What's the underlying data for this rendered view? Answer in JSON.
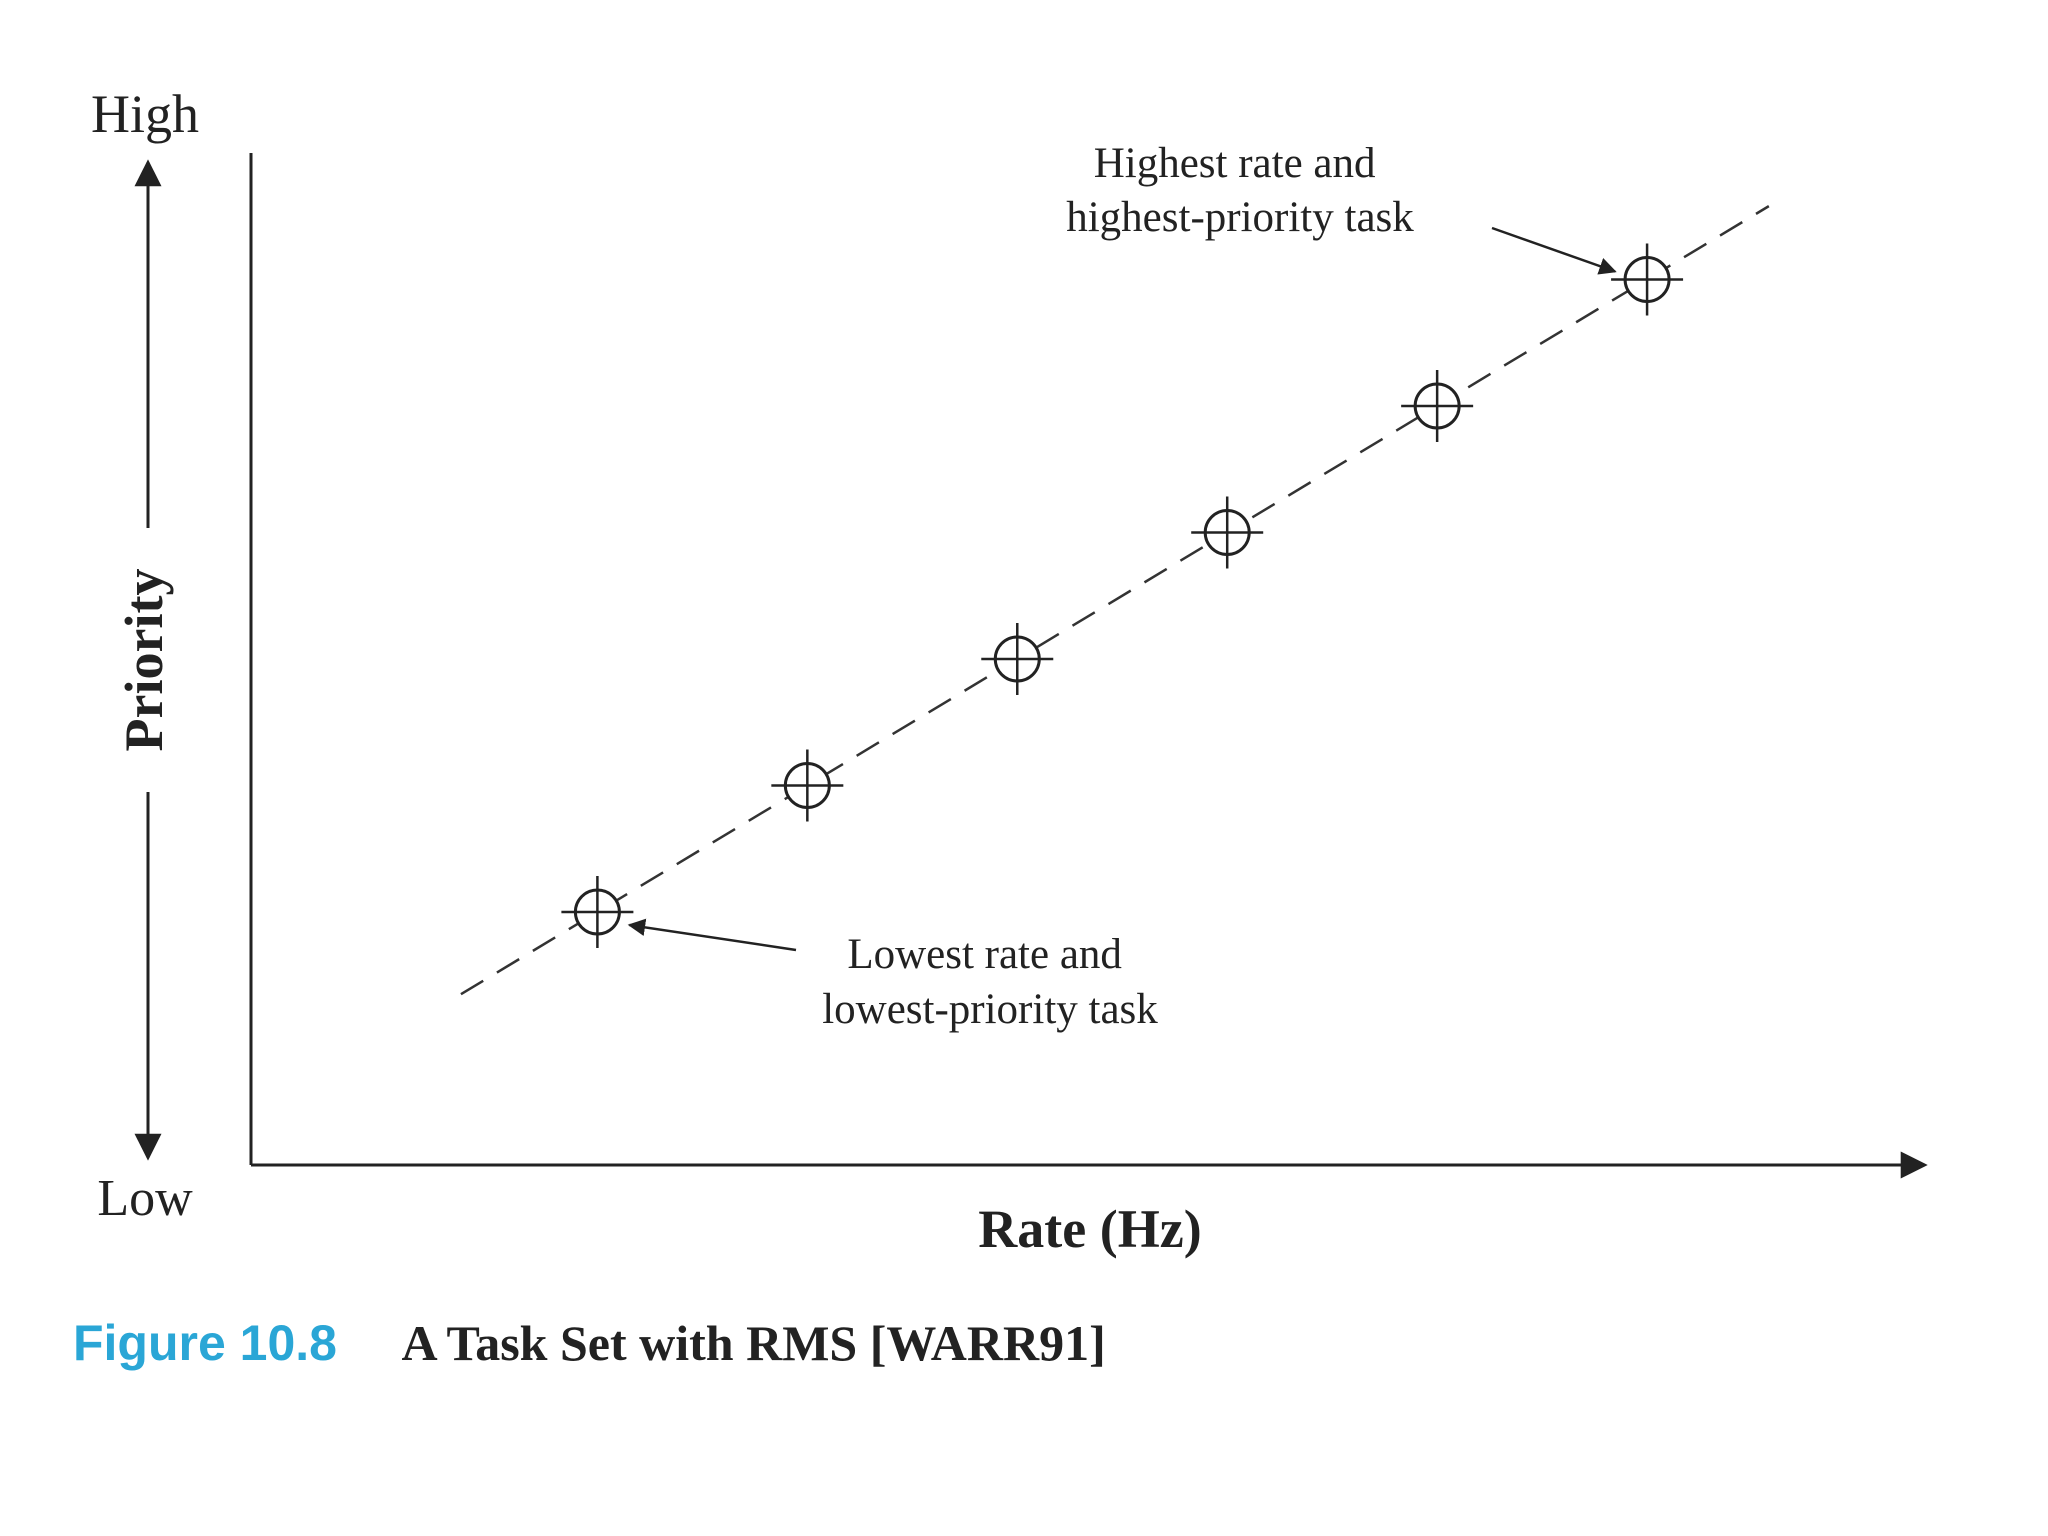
{
  "chart_data": {
    "type": "scatter",
    "xlabel": "Rate (Hz)",
    "ylabel": "Priority",
    "y_high_label": "High",
    "y_low_label": "Low",
    "x": [
      1,
      2,
      3,
      4,
      5,
      6
    ],
    "y": [
      1,
      2,
      3,
      4,
      5,
      6
    ],
    "trend_line": "dashed",
    "xlim": [
      -0.65,
      7.3
    ],
    "ylim": [
      -1.0,
      7.0
    ],
    "grid": false,
    "annotations": [
      {
        "point_index": 5,
        "lines": [
          "Highest rate and",
          "highest-priority task"
        ]
      },
      {
        "point_index": 0,
        "lines": [
          "Lowest rate and",
          "lowest-priority task"
        ]
      }
    ]
  },
  "caption": {
    "number": "Figure 10.8",
    "title": "A Task Set with RMS [WARR91]",
    "number_color": "#2aa6d6"
  }
}
